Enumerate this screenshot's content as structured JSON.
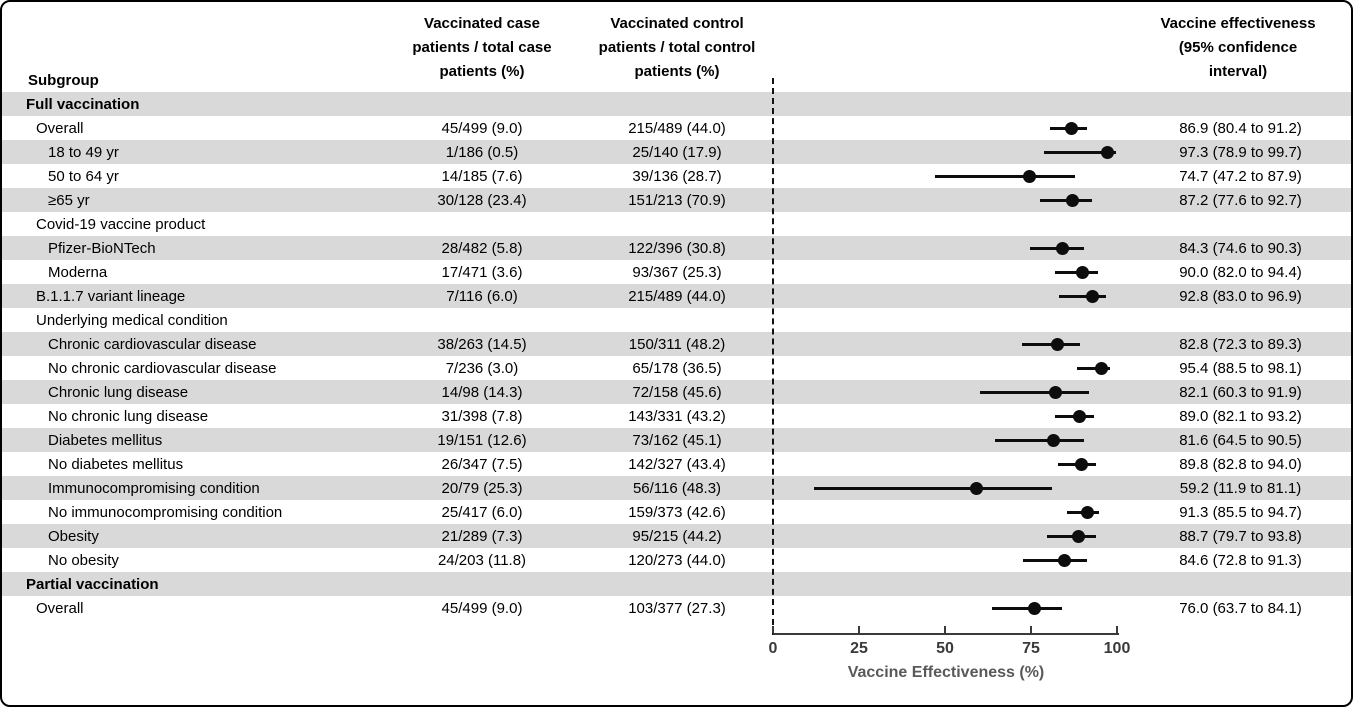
{
  "figure": {
    "columns": {
      "subgroup": "Subgroup",
      "case": "Vaccinated case\npatients / total case\npatients (%)",
      "control": "Vaccinated control\npatients / total control\npatients (%)",
      "effectiveness": "Vaccine effectiveness\n(95% confidence\ninterval)"
    },
    "colors": {
      "band": "#d9d9d9",
      "marker": "#0d0d0d",
      "axis": "#3a3a3a"
    }
  },
  "chart_data": {
    "type": "scatter",
    "subtype": "forest-plot",
    "title": "",
    "xlabel": "Vaccine Effectiveness (%)",
    "xlim": [
      0,
      100
    ],
    "xticks": [
      0,
      25,
      50,
      75,
      100
    ],
    "reference_line_x": 0,
    "rows": [
      {
        "label": "Full vaccination",
        "indent": 0,
        "section": true,
        "shaded": true,
        "case": "",
        "control": "",
        "ve": "",
        "point": null,
        "lo": null,
        "hi": null
      },
      {
        "label": "Overall",
        "indent": 1,
        "section": false,
        "shaded": false,
        "case": "45/499 (9.0)",
        "control": "215/489 (44.0)",
        "ve": "86.9 (80.4 to 91.2)",
        "point": 86.9,
        "lo": 80.4,
        "hi": 91.2
      },
      {
        "label": "18 to 49 yr",
        "indent": 2,
        "section": false,
        "shaded": true,
        "case": "1/186 (0.5)",
        "control": "25/140 (17.9)",
        "ve": "97.3 (78.9 to 99.7)",
        "point": 97.3,
        "lo": 78.9,
        "hi": 99.7
      },
      {
        "label": "50 to 64 yr",
        "indent": 2,
        "section": false,
        "shaded": false,
        "case": "14/185 (7.6)",
        "control": "39/136 (28.7)",
        "ve": "74.7 (47.2 to 87.9)",
        "point": 74.7,
        "lo": 47.2,
        "hi": 87.9
      },
      {
        "label": "≥65 yr",
        "indent": 2,
        "section": false,
        "shaded": true,
        "case": "30/128 (23.4)",
        "control": "151/213 (70.9)",
        "ve": "87.2 (77.6 to 92.7)",
        "point": 87.2,
        "lo": 77.6,
        "hi": 92.7
      },
      {
        "label": "Covid-19 vaccine product",
        "indent": 1,
        "section": false,
        "shaded": false,
        "case": "",
        "control": "",
        "ve": "",
        "point": null,
        "lo": null,
        "hi": null
      },
      {
        "label": "Pfizer-BioNTech",
        "indent": 2,
        "section": false,
        "shaded": true,
        "case": "28/482 (5.8)",
        "control": "122/396 (30.8)",
        "ve": "84.3 (74.6 to 90.3)",
        "point": 84.3,
        "lo": 74.6,
        "hi": 90.3
      },
      {
        "label": "Moderna",
        "indent": 2,
        "section": false,
        "shaded": false,
        "case": "17/471 (3.6)",
        "control": "93/367 (25.3)",
        "ve": "90.0 (82.0 to 94.4)",
        "point": 90.0,
        "lo": 82.0,
        "hi": 94.4
      },
      {
        "label": "B.1.1.7 variant lineage",
        "indent": 1,
        "section": false,
        "shaded": true,
        "case": "7/116 (6.0)",
        "control": "215/489 (44.0)",
        "ve": "92.8 (83.0 to 96.9)",
        "point": 92.8,
        "lo": 83.0,
        "hi": 96.9
      },
      {
        "label": "Underlying medical condition",
        "indent": 1,
        "section": false,
        "shaded": false,
        "case": "",
        "control": "",
        "ve": "",
        "point": null,
        "lo": null,
        "hi": null
      },
      {
        "label": "Chronic cardiovascular disease",
        "indent": 2,
        "section": false,
        "shaded": true,
        "case": "38/263 (14.5)",
        "control": "150/311 (48.2)",
        "ve": "82.8 (72.3 to 89.3)",
        "point": 82.8,
        "lo": 72.3,
        "hi": 89.3
      },
      {
        "label": "No chronic cardiovascular disease",
        "indent": 2,
        "section": false,
        "shaded": false,
        "case": "7/236 (3.0)",
        "control": "65/178 (36.5)",
        "ve": "95.4 (88.5 to 98.1)",
        "point": 95.4,
        "lo": 88.5,
        "hi": 98.1
      },
      {
        "label": "Chronic lung disease",
        "indent": 2,
        "section": false,
        "shaded": true,
        "case": "14/98 (14.3)",
        "control": "72/158 (45.6)",
        "ve": "82.1 (60.3 to 91.9)",
        "point": 82.1,
        "lo": 60.3,
        "hi": 91.9
      },
      {
        "label": "No chronic lung disease",
        "indent": 2,
        "section": false,
        "shaded": false,
        "case": "31/398 (7.8)",
        "control": "143/331 (43.2)",
        "ve": "89.0 (82.1 to 93.2)",
        "point": 89.0,
        "lo": 82.1,
        "hi": 93.2
      },
      {
        "label": "Diabetes mellitus",
        "indent": 2,
        "section": false,
        "shaded": true,
        "case": "19/151 (12.6)",
        "control": "73/162 (45.1)",
        "ve": "81.6 (64.5 to 90.5)",
        "point": 81.6,
        "lo": 64.5,
        "hi": 90.5
      },
      {
        "label": "No diabetes mellitus",
        "indent": 2,
        "section": false,
        "shaded": false,
        "case": "26/347 (7.5)",
        "control": "142/327 (43.4)",
        "ve": "89.8 (82.8 to 94.0)",
        "point": 89.8,
        "lo": 82.8,
        "hi": 94.0
      },
      {
        "label": "Immunocompromising condition",
        "indent": 2,
        "section": false,
        "shaded": true,
        "case": "20/79 (25.3)",
        "control": "56/116 (48.3)",
        "ve": "59.2 (11.9 to 81.1)",
        "point": 59.2,
        "lo": 11.9,
        "hi": 81.1
      },
      {
        "label": "No immunocompromising condition",
        "indent": 2,
        "section": false,
        "shaded": false,
        "case": "25/417 (6.0)",
        "control": "159/373 (42.6)",
        "ve": "91.3 (85.5 to 94.7)",
        "point": 91.3,
        "lo": 85.5,
        "hi": 94.7
      },
      {
        "label": "Obesity",
        "indent": 2,
        "section": false,
        "shaded": true,
        "case": "21/289 (7.3)",
        "control": "95/215 (44.2)",
        "ve": "88.7 (79.7 to 93.8)",
        "point": 88.7,
        "lo": 79.7,
        "hi": 93.8
      },
      {
        "label": "No obesity",
        "indent": 2,
        "section": false,
        "shaded": false,
        "case": "24/203 (11.8)",
        "control": "120/273 (44.0)",
        "ve": "84.6 (72.8 to 91.3)",
        "point": 84.6,
        "lo": 72.8,
        "hi": 91.3
      },
      {
        "label": "Partial vaccination",
        "indent": 0,
        "section": true,
        "shaded": true,
        "case": "",
        "control": "",
        "ve": "",
        "point": null,
        "lo": null,
        "hi": null
      },
      {
        "label": "Overall",
        "indent": 1,
        "section": false,
        "shaded": false,
        "case": "45/499 (9.0)",
        "control": "103/377 (27.3)",
        "ve": "76.0 (63.7 to 84.1)",
        "point": 76.0,
        "lo": 63.7,
        "hi": 84.1
      }
    ]
  }
}
